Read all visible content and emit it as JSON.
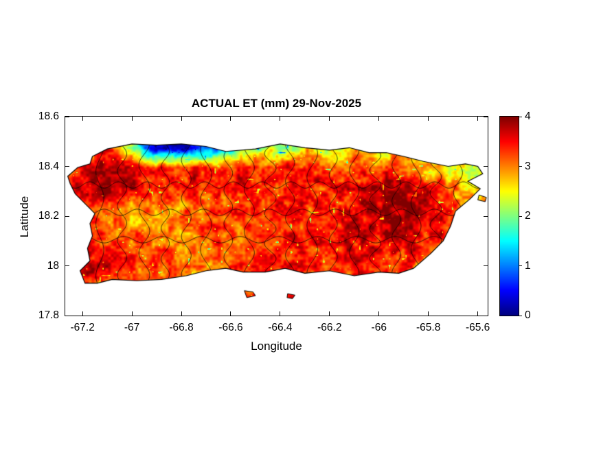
{
  "chart_data": {
    "type": "heatmap",
    "title": "ACTUAL ET (mm) 29-Nov-2025",
    "xlabel": "Longitude",
    "ylabel": "Latitude",
    "region": "Puerto Rico with municipality boundaries",
    "xlim": [
      -67.27,
      -65.56
    ],
    "ylim": [
      17.8,
      18.6
    ],
    "xticks": [
      -67.2,
      -67,
      -66.8,
      -66.6,
      -66.4,
      -66.2,
      -66,
      -65.8,
      -65.6
    ],
    "xtick_labels": [
      "-67.2",
      "-67",
      "-66.8",
      "-66.6",
      "-66.4",
      "-66.2",
      "-66",
      "-65.8",
      "-65.6"
    ],
    "yticks": [
      17.8,
      18,
      18.2,
      18.4,
      18.6
    ],
    "ytick_labels": [
      "17.8",
      "18",
      "18.2",
      "18.4",
      "18.6"
    ],
    "colorbar": {
      "min": 0,
      "max": 4,
      "ticks": [
        0,
        1,
        2,
        3,
        4
      ],
      "tick_labels": [
        "0",
        "1",
        "2",
        "3",
        "4"
      ],
      "colormap": "jet",
      "unit": "mm"
    },
    "value_grid": {
      "lon_min": -67.3,
      "lon_max": -65.55,
      "lat_min": 17.85,
      "lat_max": 18.55,
      "ncols": 20,
      "nrows": 10,
      "values_top_to_bottom": [
        [
          3.2,
          3.4,
          3.5,
          2.4,
          0.5,
          0.2,
          0.5,
          1.0,
          2.0,
          2.2,
          1.8,
          2.4,
          2.2,
          2.6,
          2.4,
          2.6,
          2.0,
          2.4,
          2.2,
          2.5
        ],
        [
          3.2,
          3.5,
          3.6,
          2.6,
          0.6,
          0.2,
          0.4,
          0.9,
          2.0,
          2.4,
          1.8,
          2.6,
          2.2,
          2.8,
          2.4,
          2.6,
          2.0,
          2.5,
          2.2,
          2.6
        ],
        [
          3.2,
          3.6,
          3.8,
          3.7,
          3.3,
          3.4,
          3.6,
          3.2,
          3.4,
          3.3,
          3.5,
          3.4,
          3.2,
          3.4,
          3.3,
          3.1,
          2.8,
          2.6,
          2.3,
          2.4
        ],
        [
          2.9,
          3.7,
          3.9,
          3.7,
          3.5,
          3.4,
          3.5,
          3.3,
          3.5,
          3.4,
          3.3,
          3.5,
          3.4,
          3.5,
          3.7,
          3.8,
          3.7,
          3.2,
          2.6,
          2.8
        ],
        [
          2.8,
          3.3,
          3.3,
          3.0,
          3.0,
          2.9,
          3.1,
          3.2,
          3.4,
          3.3,
          3.5,
          3.3,
          3.4,
          3.6,
          3.8,
          3.9,
          3.8,
          3.4,
          2.9,
          2.8
        ],
        [
          3.0,
          3.5,
          3.2,
          3.0,
          2.9,
          3.0,
          3.1,
          3.3,
          3.2,
          3.4,
          3.3,
          3.5,
          3.4,
          3.6,
          3.8,
          3.8,
          3.7,
          3.5,
          3.1,
          3.0
        ],
        [
          3.2,
          3.6,
          3.4,
          3.2,
          3.1,
          3.1,
          3.0,
          3.2,
          3.3,
          3.2,
          3.4,
          3.4,
          3.5,
          3.5,
          3.6,
          3.6,
          3.4,
          3.2,
          3.0,
          2.8
        ],
        [
          3.4,
          3.7,
          3.5,
          3.4,
          3.3,
          3.2,
          3.1,
          3.0,
          3.3,
          3.4,
          3.4,
          3.5,
          3.4,
          3.4,
          3.5,
          3.3,
          3.1,
          2.9,
          2.7,
          2.6
        ],
        [
          3.5,
          3.6,
          3.4,
          3.3,
          3.2,
          3.1,
          3.0,
          3.1,
          3.2,
          3.3,
          3.3,
          3.2,
          3.2,
          3.2,
          3.1,
          2.9,
          2.7,
          2.5,
          2.3,
          2.2
        ],
        [
          3.5,
          3.6,
          3.4,
          3.3,
          3.2,
          3.1,
          3.0,
          3.1,
          3.2,
          3.3,
          3.3,
          3.2,
          3.2,
          3.2,
          3.1,
          2.9,
          2.7,
          2.5,
          2.3,
          2.2
        ]
      ]
    },
    "coastline": [
      [
        -67.16,
        18.44
      ],
      [
        -67.1,
        18.47
      ],
      [
        -67.0,
        18.49
      ],
      [
        -66.9,
        18.485
      ],
      [
        -66.8,
        18.49
      ],
      [
        -66.7,
        18.48
      ],
      [
        -66.62,
        18.46
      ],
      [
        -66.5,
        18.47
      ],
      [
        -66.4,
        18.49
      ],
      [
        -66.3,
        18.475
      ],
      [
        -66.2,
        18.465
      ],
      [
        -66.12,
        18.475
      ],
      [
        -66.04,
        18.455
      ],
      [
        -65.97,
        18.455
      ],
      [
        -65.9,
        18.44
      ],
      [
        -65.82,
        18.42
      ],
      [
        -65.72,
        18.4
      ],
      [
        -65.65,
        18.41
      ],
      [
        -65.6,
        18.4
      ],
      [
        -65.58,
        18.37
      ],
      [
        -65.64,
        18.34
      ],
      [
        -65.59,
        18.31
      ],
      [
        -65.63,
        18.27
      ],
      [
        -65.69,
        18.22
      ],
      [
        -65.71,
        18.16
      ],
      [
        -65.74,
        18.1
      ],
      [
        -65.79,
        18.05
      ],
      [
        -65.86,
        17.99
      ],
      [
        -65.92,
        17.97
      ],
      [
        -66.0,
        17.975
      ],
      [
        -66.1,
        17.96
      ],
      [
        -66.2,
        17.98
      ],
      [
        -66.3,
        17.97
      ],
      [
        -66.38,
        17.99
      ],
      [
        -66.46,
        17.975
      ],
      [
        -66.55,
        17.975
      ],
      [
        -66.62,
        17.99
      ],
      [
        -66.7,
        17.98
      ],
      [
        -66.78,
        17.96
      ],
      [
        -66.88,
        17.945
      ],
      [
        -66.98,
        17.94
      ],
      [
        -67.08,
        17.945
      ],
      [
        -67.14,
        17.93
      ],
      [
        -67.19,
        17.93
      ],
      [
        -67.21,
        17.98
      ],
      [
        -67.17,
        18.02
      ],
      [
        -67.18,
        18.07
      ],
      [
        -67.16,
        18.12
      ],
      [
        -67.17,
        18.17
      ],
      [
        -67.15,
        18.21
      ],
      [
        -67.19,
        18.25
      ],
      [
        -67.23,
        18.29
      ],
      [
        -67.25,
        18.33
      ],
      [
        -67.26,
        18.36
      ],
      [
        -67.22,
        18.395
      ],
      [
        -67.17,
        18.41
      ]
    ],
    "islets": [
      [
        [
          -66.545,
          17.9
        ],
        [
          -66.51,
          17.895
        ],
        [
          -66.5,
          17.88
        ],
        [
          -66.535,
          17.872
        ]
      ],
      [
        [
          -66.37,
          17.888
        ],
        [
          -66.34,
          17.882
        ],
        [
          -66.35,
          17.868
        ],
        [
          -66.372,
          17.872
        ]
      ],
      [
        [
          -65.595,
          18.285
        ],
        [
          -65.565,
          18.275
        ],
        [
          -65.57,
          18.258
        ],
        [
          -65.6,
          18.265
        ]
      ]
    ],
    "boundary_lines": {
      "vertical_lons": [
        -67.13,
        -67.04,
        -66.95,
        -66.865,
        -66.78,
        -66.7,
        -66.61,
        -66.525,
        -66.44,
        -66.36,
        -66.27,
        -66.185,
        -66.1,
        -66.015,
        -65.93,
        -65.85,
        -65.77,
        -65.68
      ],
      "horizontal_lats": [
        18.105,
        18.215,
        18.325
      ]
    }
  },
  "style": {
    "background": "#ffffff",
    "outline_color": "#000000",
    "jet_stops": [
      "#000080",
      "#0000ff",
      "#00ffff",
      "#ffff00",
      "#ff0000",
      "#800000"
    ]
  }
}
